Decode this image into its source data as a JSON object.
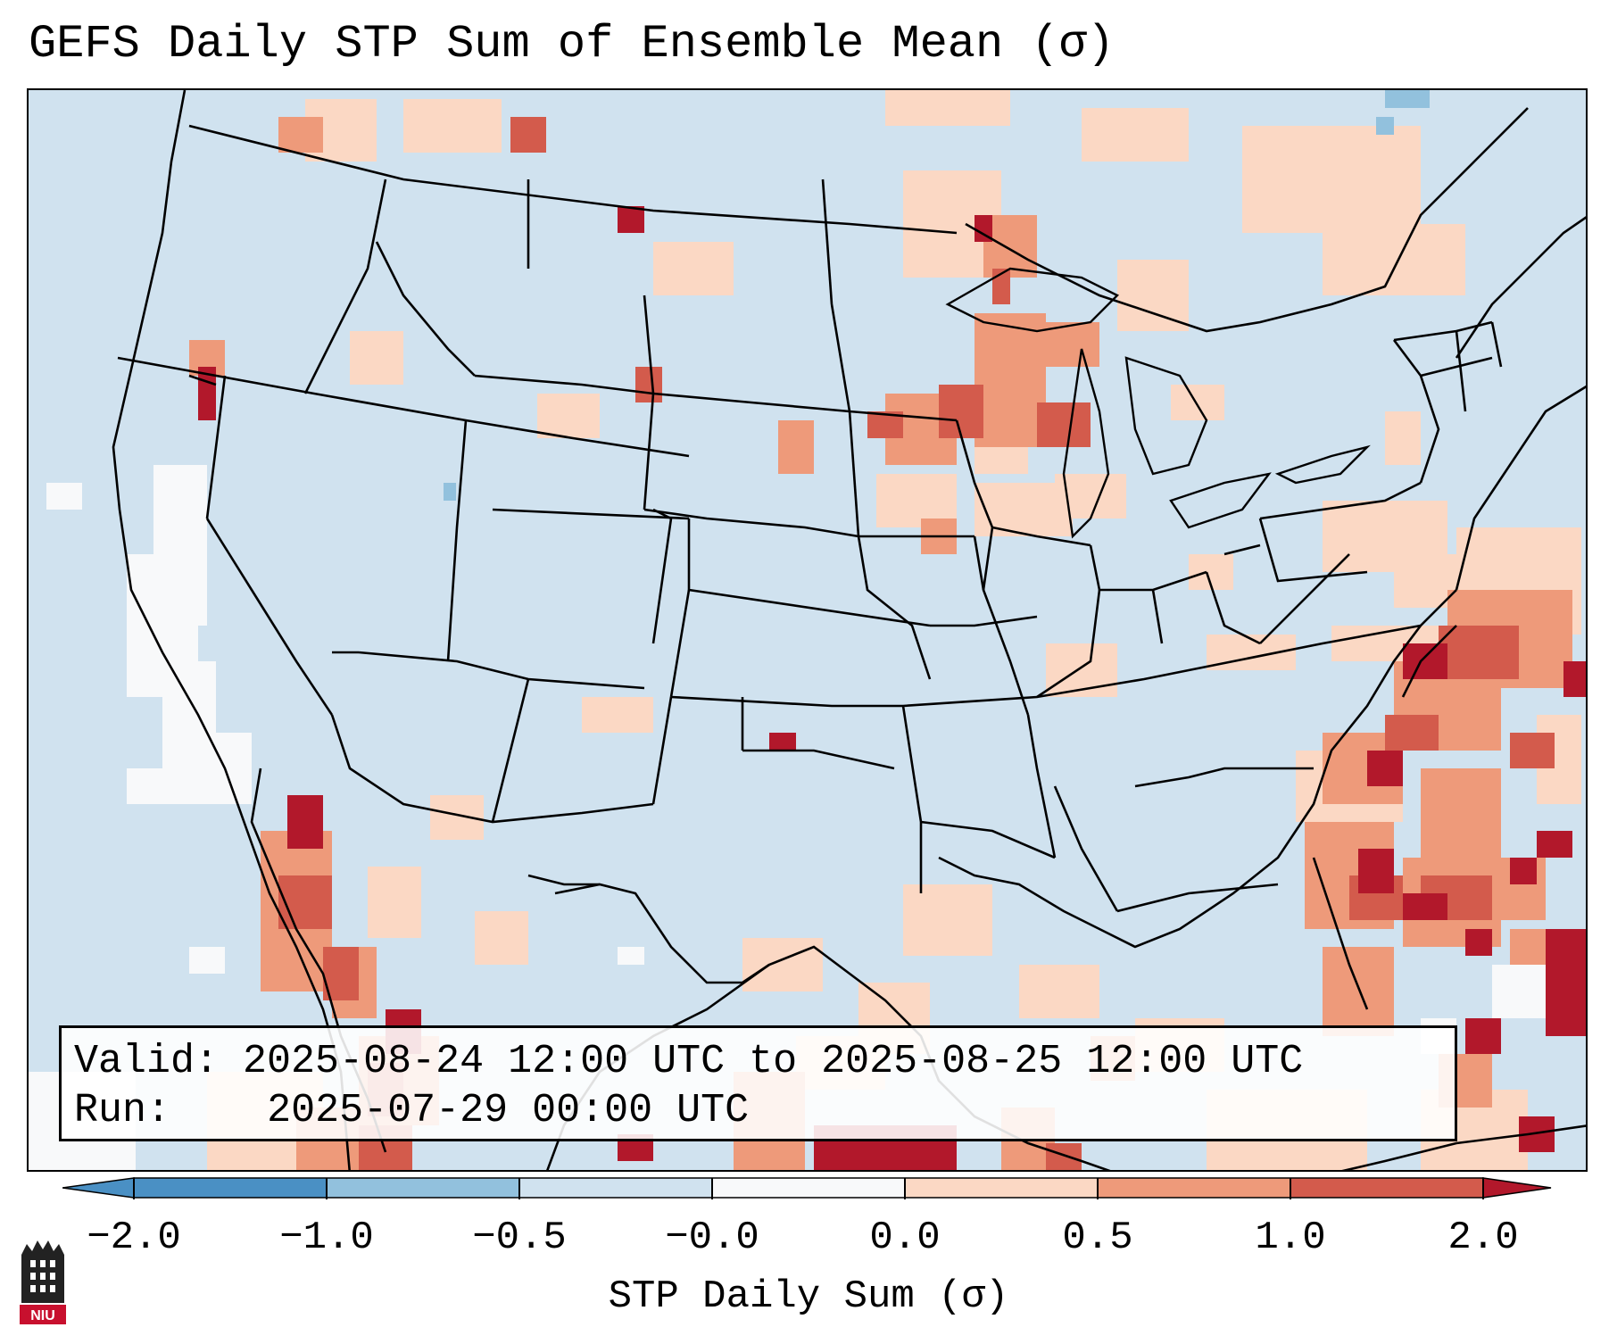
{
  "title": "GEFS Daily STP Sum of Ensemble Mean (σ)",
  "info": {
    "valid_label": "Valid:",
    "valid_value": "2025-08-24 12:00 UTC to 2025-08-25 12:00 UTC",
    "run_label": "Run:",
    "run_value": "2025-07-29 00:00 UTC"
  },
  "colorbar": {
    "label": "STP Daily Sum (σ)",
    "ticks": [
      "−2.0",
      "−1.0",
      "−0.5",
      "−0.0",
      "0.0",
      "0.5",
      "1.0",
      "2.0"
    ],
    "colors": [
      "#4a90c4",
      "#92c1dd",
      "#d0e2ef",
      "#f8f9fa",
      "#fbd8c4",
      "#ee9a7a",
      "#d35b4c",
      "#b2182b"
    ]
  },
  "logo": {
    "text": "NIU"
  },
  "map": {
    "background_color": "#d0e2ef",
    "region": "Contiguous United States, southern Canada, northern Mexico, Gulf of Mexico and western Atlantic"
  }
}
